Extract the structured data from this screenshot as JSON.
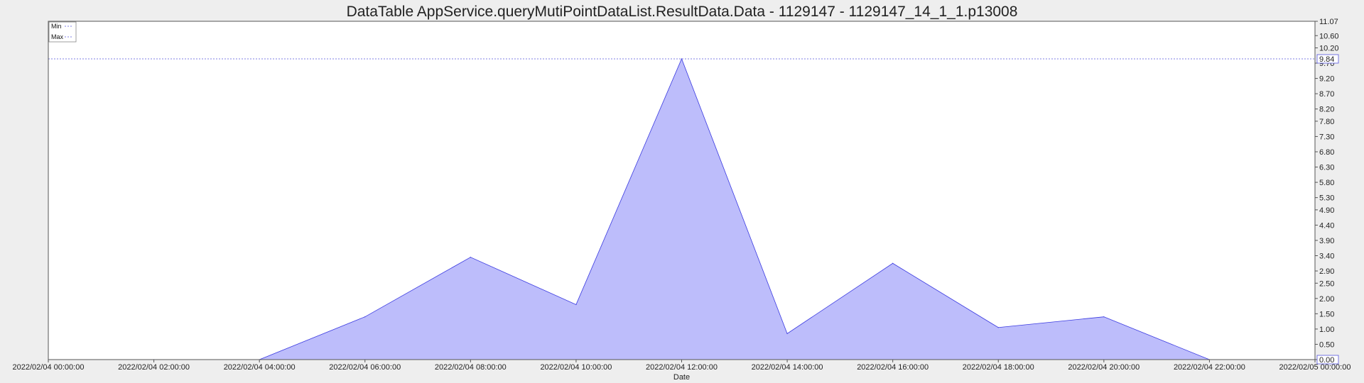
{
  "chart_data": {
    "type": "area",
    "title": "DataTable AppService.queryMutiPointDataList.ResultData.Data - 1129147 - 1129147_14_1_1.p13008",
    "xlabel": "Date",
    "ylabel": "",
    "x_tick_labels": [
      "2022/02/04 00:00:00",
      "2022/02/04 02:00:00",
      "2022/02/04 04:00:00",
      "2022/02/04 06:00:00",
      "2022/02/04 08:00:00",
      "2022/02/04 10:00:00",
      "2022/02/04 12:00:00",
      "2022/02/04 14:00:00",
      "2022/02/04 16:00:00",
      "2022/02/04 18:00:00",
      "2022/02/04 20:00:00",
      "2022/02/04 22:00:00",
      "2022/02/05 00:00:00"
    ],
    "y_tick_labels": [
      "0.00",
      "0.50",
      "1.00",
      "1.50",
      "2.00",
      "2.50",
      "2.90",
      "3.40",
      "3.90",
      "4.40",
      "4.90",
      "5.30",
      "5.80",
      "6.30",
      "6.80",
      "7.30",
      "7.80",
      "8.20",
      "8.70",
      "9.20",
      "9.70",
      "10.20",
      "10.60",
      "11.07"
    ],
    "ylim": [
      0,
      11.07
    ],
    "xlim": [
      "2022/02/04 00:00:00",
      "2022/02/05 00:00:00"
    ],
    "y_axis_side": "right",
    "series": [
      {
        "x": [
          "2022/02/04 00:00:00",
          "2022/02/04 02:00:00",
          "2022/02/04 04:00:00",
          "2022/02/04 06:00:00",
          "2022/02/04 08:00:00",
          "2022/02/04 10:00:00",
          "2022/02/04 12:00:00",
          "2022/02/04 14:00:00",
          "2022/02/04 16:00:00",
          "2022/02/04 18:00:00",
          "2022/02/04 20:00:00",
          "2022/02/04 22:00:00",
          "2022/02/05 00:00:00"
        ],
        "values": [
          0.0,
          0.0,
          0.0,
          1.4,
          3.35,
          1.8,
          9.84,
          0.85,
          3.15,
          1.05,
          1.4,
          0.0,
          0.0
        ],
        "color": "#bdbdfb",
        "line_color": "#3a3ae0"
      }
    ],
    "reference_lines": [
      {
        "name": "Min",
        "value": 0.0,
        "label": "0.00",
        "color": "#5555dd"
      },
      {
        "name": "Max",
        "value": 9.84,
        "label": "9.84",
        "color": "#5555dd"
      }
    ],
    "legend": {
      "position": "top-left",
      "entries": [
        "Min",
        "Max"
      ]
    },
    "grid": false
  }
}
